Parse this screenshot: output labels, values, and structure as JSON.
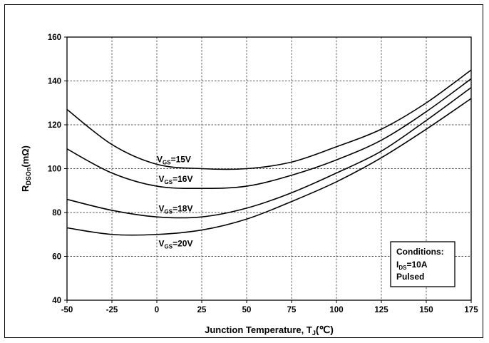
{
  "chart_data": {
    "type": "line",
    "title": "",
    "xlabel": {
      "main": "Junction Temperature, T",
      "sub": "J",
      "unit": "(℃)"
    },
    "ylabel": {
      "main": "R",
      "sub": "DSOn",
      "unit": "(mΩ)"
    },
    "xlim": [
      -50,
      175
    ],
    "ylim": [
      40,
      160
    ],
    "xticks": [
      "-50",
      "-25",
      "0",
      "25",
      "50",
      "75",
      "100",
      "125",
      "150",
      "175"
    ],
    "yticks": [
      "40",
      "60",
      "80",
      "100",
      "120",
      "140",
      "160"
    ],
    "grid": true,
    "legend": "none",
    "x": [
      -50,
      -25,
      0,
      25,
      50,
      75,
      100,
      125,
      150,
      175
    ],
    "series": [
      {
        "label_main": "V",
        "label_sub": "GS",
        "label_value": "=15V",
        "label_x": 0,
        "label_y": 103,
        "values": [
          127,
          111,
          102,
          100,
          100,
          103,
          110,
          118,
          130,
          145
        ]
      },
      {
        "label_main": "V",
        "label_sub": "GS",
        "label_value": "=16V",
        "label_x": 1,
        "label_y": 94,
        "values": [
          109,
          98,
          92,
          91,
          92,
          97,
          104,
          113,
          126,
          141
        ]
      },
      {
        "label_main": "V",
        "label_sub": "GS",
        "label_value": "=18V",
        "label_x": 1,
        "label_y": 80.5,
        "values": [
          86,
          81,
          78,
          78,
          82,
          89,
          98,
          108,
          122,
          137
        ]
      },
      {
        "label_main": "V",
        "label_sub": "GS",
        "label_value": "=20V",
        "label_x": 1,
        "label_y": 64.5,
        "values": [
          73,
          70,
          70,
          72,
          77,
          85,
          94,
          105,
          118,
          132
        ]
      }
    ],
    "conditions": {
      "heading": "Conditions:",
      "current_main": "I",
      "current_sub": "DS",
      "current_value": "=10A",
      "mode": "Pulsed"
    }
  }
}
